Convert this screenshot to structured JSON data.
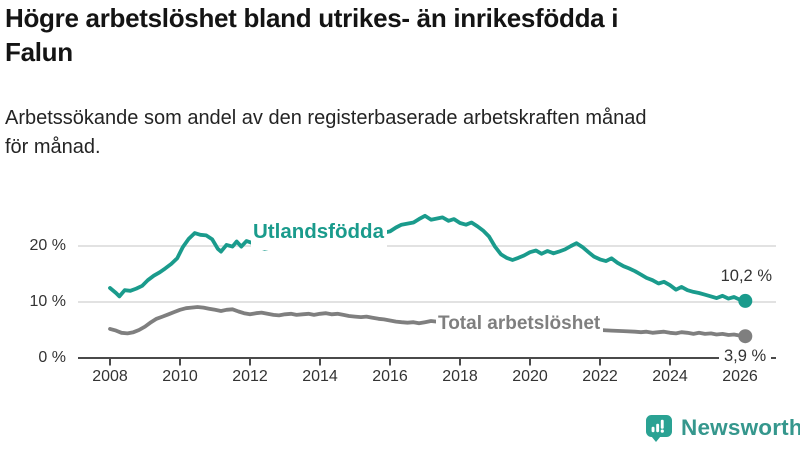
{
  "header": {
    "title": "Högre arbetslöshet bland utrikes- än inrikesfödda i Falun",
    "title_lines": [
      "Högre arbetslöshet bland utrikes- än inrikesfödda i",
      "Falun"
    ],
    "subtitle": "Arbetssökande som andel av den registerbaserade arbetskraften månad för månad.",
    "subtitle_lines": [
      "Arbetssökande som andel av den registerbaserade arbetskraften månad",
      "för månad."
    ]
  },
  "chart_data": {
    "type": "line",
    "title": "Högre arbetslöshet bland utrikes- än inrikesfödda i Falun",
    "subtitle": "Arbetssökande som andel av den registerbaserade arbetskraften månad för månad.",
    "grid": "horizontal",
    "legend": "inline-labels",
    "x_axis": {
      "ticks": [
        2008,
        2010,
        2012,
        2014,
        2016,
        2018,
        2020,
        2022,
        2024,
        2026
      ],
      "range": [
        2007.1,
        2027
      ]
    },
    "y_axis": {
      "ticks": [
        0,
        10,
        20
      ],
      "tick_labels": [
        "0 %",
        "10 %",
        "20 %"
      ],
      "unit": "%",
      "range": [
        0,
        27
      ]
    },
    "series": [
      {
        "name": "Utlandsfödda",
        "color": "#1a9b8c",
        "end_value": 10.2,
        "end_label": "10,2 %",
        "points": [
          [
            2008.0,
            12.5
          ],
          [
            2008.17,
            11.6
          ],
          [
            2008.27,
            11.0
          ],
          [
            2008.42,
            12.1
          ],
          [
            2008.58,
            12.0
          ],
          [
            2008.75,
            12.4
          ],
          [
            2008.92,
            12.9
          ],
          [
            2009.08,
            13.9
          ],
          [
            2009.25,
            14.7
          ],
          [
            2009.42,
            15.3
          ],
          [
            2009.58,
            16.0
          ],
          [
            2009.75,
            16.8
          ],
          [
            2009.92,
            17.8
          ],
          [
            2010.08,
            19.8
          ],
          [
            2010.25,
            21.3
          ],
          [
            2010.42,
            22.3
          ],
          [
            2010.58,
            22.0
          ],
          [
            2010.75,
            21.9
          ],
          [
            2010.92,
            21.2
          ],
          [
            2011.08,
            19.5
          ],
          [
            2011.17,
            19.0
          ],
          [
            2011.33,
            20.2
          ],
          [
            2011.5,
            19.9
          ],
          [
            2011.62,
            20.8
          ],
          [
            2011.75,
            19.9
          ],
          [
            2011.9,
            20.9
          ],
          [
            2012.08,
            20.5
          ],
          [
            2012.25,
            19.8
          ],
          [
            2012.42,
            19.5
          ],
          [
            2012.75,
            19.9
          ],
          [
            2013.08,
            20.2
          ],
          [
            2013.42,
            20.5
          ],
          [
            2013.75,
            20.8
          ],
          [
            2014.08,
            21.0
          ],
          [
            2014.42,
            21.3
          ],
          [
            2014.75,
            21.5
          ],
          [
            2015.08,
            21.8
          ],
          [
            2015.42,
            22.0
          ],
          [
            2015.75,
            22.3
          ],
          [
            2016.0,
            22.6
          ],
          [
            2016.17,
            23.3
          ],
          [
            2016.33,
            23.8
          ],
          [
            2016.5,
            24.0
          ],
          [
            2016.67,
            24.2
          ],
          [
            2016.83,
            24.8
          ],
          [
            2017.0,
            25.4
          ],
          [
            2017.17,
            24.7
          ],
          [
            2017.33,
            24.9
          ],
          [
            2017.5,
            25.1
          ],
          [
            2017.67,
            24.5
          ],
          [
            2017.83,
            24.8
          ],
          [
            2018.0,
            24.1
          ],
          [
            2018.17,
            23.8
          ],
          [
            2018.33,
            24.2
          ],
          [
            2018.5,
            23.5
          ],
          [
            2018.67,
            22.7
          ],
          [
            2018.83,
            21.7
          ],
          [
            2019.0,
            19.9
          ],
          [
            2019.17,
            18.5
          ],
          [
            2019.33,
            17.9
          ],
          [
            2019.5,
            17.5
          ],
          [
            2019.67,
            17.9
          ],
          [
            2019.83,
            18.3
          ],
          [
            2020.0,
            18.9
          ],
          [
            2020.17,
            19.2
          ],
          [
            2020.33,
            18.6
          ],
          [
            2020.5,
            19.1
          ],
          [
            2020.67,
            18.7
          ],
          [
            2020.83,
            19.0
          ],
          [
            2021.0,
            19.4
          ],
          [
            2021.17,
            20.0
          ],
          [
            2021.33,
            20.5
          ],
          [
            2021.5,
            19.8
          ],
          [
            2021.67,
            18.9
          ],
          [
            2021.83,
            18.1
          ],
          [
            2022.0,
            17.6
          ],
          [
            2022.17,
            17.3
          ],
          [
            2022.33,
            17.8
          ],
          [
            2022.5,
            17.0
          ],
          [
            2022.67,
            16.4
          ],
          [
            2022.83,
            16.0
          ],
          [
            2023.0,
            15.5
          ],
          [
            2023.17,
            14.9
          ],
          [
            2023.33,
            14.3
          ],
          [
            2023.5,
            13.9
          ],
          [
            2023.67,
            13.3
          ],
          [
            2023.83,
            13.6
          ],
          [
            2024.0,
            13.0
          ],
          [
            2024.17,
            12.2
          ],
          [
            2024.33,
            12.7
          ],
          [
            2024.5,
            12.1
          ],
          [
            2024.67,
            11.8
          ],
          [
            2024.83,
            11.6
          ],
          [
            2025.0,
            11.3
          ],
          [
            2025.17,
            11.0
          ],
          [
            2025.33,
            10.7
          ],
          [
            2025.5,
            11.1
          ],
          [
            2025.67,
            10.6
          ],
          [
            2025.83,
            10.9
          ],
          [
            2026.0,
            10.4
          ],
          [
            2026.15,
            10.2
          ]
        ]
      },
      {
        "name": "Total arbetslöshet",
        "color": "#7f7f7f",
        "end_value": 3.9,
        "end_label": "3,9 %",
        "points": [
          [
            2008.0,
            5.2
          ],
          [
            2008.17,
            4.9
          ],
          [
            2008.33,
            4.5
          ],
          [
            2008.5,
            4.4
          ],
          [
            2008.67,
            4.6
          ],
          [
            2008.83,
            5.0
          ],
          [
            2009.0,
            5.6
          ],
          [
            2009.17,
            6.4
          ],
          [
            2009.33,
            7.0
          ],
          [
            2009.5,
            7.4
          ],
          [
            2009.67,
            7.8
          ],
          [
            2009.83,
            8.2
          ],
          [
            2010.0,
            8.6
          ],
          [
            2010.17,
            8.9
          ],
          [
            2010.33,
            9.0
          ],
          [
            2010.5,
            9.1
          ],
          [
            2010.67,
            9.0
          ],
          [
            2010.83,
            8.8
          ],
          [
            2011.0,
            8.6
          ],
          [
            2011.17,
            8.4
          ],
          [
            2011.33,
            8.6
          ],
          [
            2011.5,
            8.7
          ],
          [
            2011.67,
            8.3
          ],
          [
            2011.83,
            8.0
          ],
          [
            2012.0,
            7.8
          ],
          [
            2012.17,
            8.0
          ],
          [
            2012.33,
            8.1
          ],
          [
            2012.5,
            7.9
          ],
          [
            2012.67,
            7.7
          ],
          [
            2012.83,
            7.6
          ],
          [
            2013.0,
            7.8
          ],
          [
            2013.17,
            7.9
          ],
          [
            2013.33,
            7.7
          ],
          [
            2013.5,
            7.8
          ],
          [
            2013.67,
            7.9
          ],
          [
            2013.83,
            7.7
          ],
          [
            2014.0,
            7.9
          ],
          [
            2014.17,
            8.0
          ],
          [
            2014.33,
            7.8
          ],
          [
            2014.5,
            7.9
          ],
          [
            2014.67,
            7.7
          ],
          [
            2014.83,
            7.5
          ],
          [
            2015.0,
            7.4
          ],
          [
            2015.17,
            7.3
          ],
          [
            2015.33,
            7.4
          ],
          [
            2015.5,
            7.2
          ],
          [
            2015.67,
            7.0
          ],
          [
            2015.83,
            6.9
          ],
          [
            2016.0,
            6.7
          ],
          [
            2016.17,
            6.5
          ],
          [
            2016.33,
            6.4
          ],
          [
            2016.5,
            6.3
          ],
          [
            2016.67,
            6.4
          ],
          [
            2016.83,
            6.2
          ],
          [
            2017.0,
            6.4
          ],
          [
            2017.17,
            6.6
          ],
          [
            2017.33,
            6.5
          ],
          [
            2017.67,
            6.2
          ],
          [
            2018.0,
            6.0
          ],
          [
            2018.33,
            5.8
          ],
          [
            2018.67,
            5.6
          ],
          [
            2019.0,
            5.5
          ],
          [
            2019.33,
            5.3
          ],
          [
            2019.67,
            5.4
          ],
          [
            2020.0,
            5.7
          ],
          [
            2020.33,
            6.0
          ],
          [
            2020.67,
            5.9
          ],
          [
            2021.0,
            5.7
          ],
          [
            2021.33,
            5.4
          ],
          [
            2021.67,
            5.2
          ],
          [
            2022.0,
            5.0
          ],
          [
            2022.33,
            4.9
          ],
          [
            2022.67,
            4.8
          ],
          [
            2023.0,
            4.7
          ],
          [
            2023.17,
            4.6
          ],
          [
            2023.33,
            4.7
          ],
          [
            2023.5,
            4.5
          ],
          [
            2023.67,
            4.6
          ],
          [
            2023.83,
            4.7
          ],
          [
            2024.0,
            4.5
          ],
          [
            2024.17,
            4.4
          ],
          [
            2024.33,
            4.6
          ],
          [
            2024.5,
            4.5
          ],
          [
            2024.67,
            4.3
          ],
          [
            2024.83,
            4.5
          ],
          [
            2025.0,
            4.3
          ],
          [
            2025.17,
            4.4
          ],
          [
            2025.33,
            4.2
          ],
          [
            2025.5,
            4.3
          ],
          [
            2025.67,
            4.1
          ],
          [
            2025.83,
            4.2
          ],
          [
            2026.0,
            4.0
          ],
          [
            2026.15,
            3.9
          ]
        ]
      }
    ],
    "style": {
      "gridline_color": "#d9d9d9",
      "axis_color": "#4a4a4a",
      "tick_label_color": "#333333",
      "value_label_color": "#333333"
    }
  },
  "footer": {
    "brand": "Newsworthy",
    "brand_icon": "speech-bubble-bar-chart-icon",
    "brand_color": "#2aa293",
    "brand_text_color": "#35978d"
  }
}
